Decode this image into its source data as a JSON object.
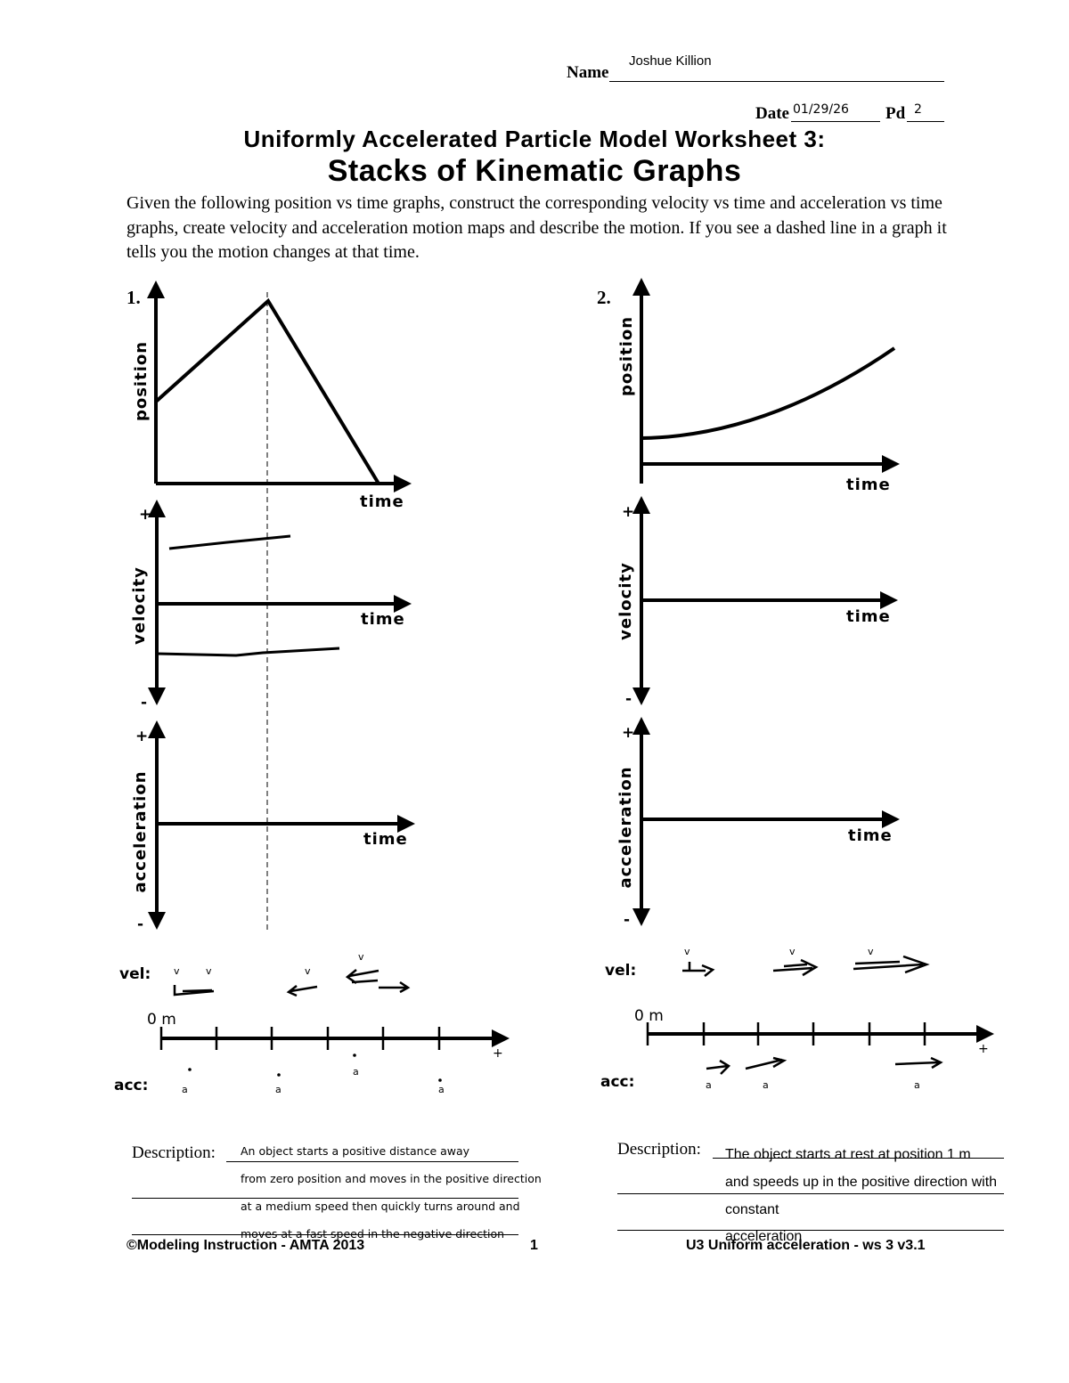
{
  "header": {
    "name_label": "Name",
    "name_value": "Joshue Killion",
    "date_label": "Date",
    "date_value": "01/29/26",
    "pd_label": "Pd",
    "pd_value": "2"
  },
  "title": {
    "line1": "Uniformly Accelerated Particle Model Worksheet 3:",
    "line2": "Stacks of Kinematic Graphs"
  },
  "instructions": "Given the following position vs time graphs, construct the corresponding velocity vs time and acceleration vs time graphs, create velocity and acceleration motion maps and describe the motion. If you see a dashed line in a graph it tells you the motion changes at that time.",
  "problems": [
    {
      "number": "1.",
      "axes": {
        "position": "position",
        "velocity": "velocity",
        "acceleration": "acceleration",
        "time": "time",
        "plus": "+",
        "minus": "-"
      },
      "motion_map": {
        "vel_label": "vel:",
        "acc_label": "acc:",
        "origin": "0 m",
        "plus": "+",
        "v_mark": "v",
        "a_mark": "a"
      },
      "description_label": "Description:",
      "description_lines": [
        "An object starts a positive distance away",
        "from zero position and moves in the positive direction",
        "at a medium speed then quickly turns around and",
        "moves at a fast speed in the negative direction"
      ]
    },
    {
      "number": "2.",
      "axes": {
        "position": "position",
        "velocity": "velocity",
        "acceleration": "acceleration",
        "time": "time",
        "plus": "+",
        "minus": "-"
      },
      "motion_map": {
        "vel_label": "vel:",
        "acc_label": "acc:",
        "origin": "0 m",
        "plus": "+",
        "v_mark": "v",
        "a_mark": "a"
      },
      "description_label": "Description:",
      "description_lines": [
        "The object starts at rest at position 1 m",
        "and speeds up in the positive direction with",
        "constant",
        "acceleration"
      ]
    }
  ],
  "footer": {
    "left": "©Modeling Instruction - AMTA 2013",
    "page": "1",
    "right": "U3 Uniform acceleration -  ws 3 v3.1"
  }
}
